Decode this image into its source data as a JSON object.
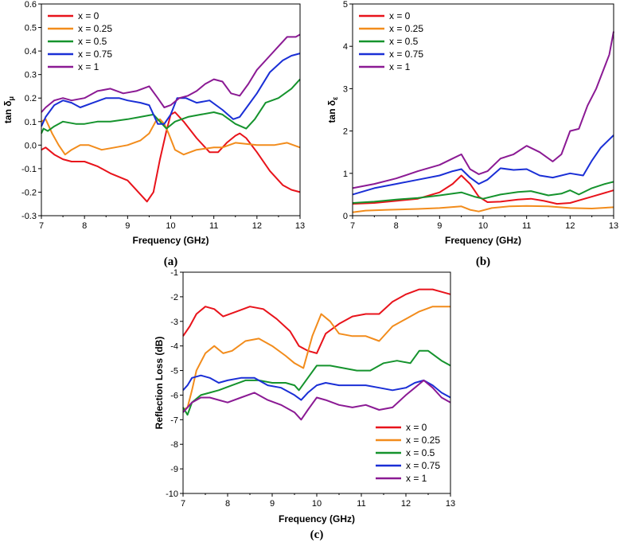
{
  "chart_data": [
    {
      "type": "line",
      "panel_label": "(a)",
      "xlabel": "Frequency (GHz)",
      "ylabel_main": "tan δ",
      "ylabel_sub": "μ",
      "xlim": [
        7,
        13
      ],
      "ylim": [
        -0.3,
        0.6
      ],
      "xticks": [
        7,
        8,
        9,
        10,
        11,
        12,
        13
      ],
      "yticks": [
        -0.3,
        -0.2,
        -0.1,
        0.0,
        0.1,
        0.2,
        0.3,
        0.4,
        0.5,
        0.6
      ],
      "ytick_labels": [
        "-0.3",
        "-0.2",
        "-0.1",
        "0.0",
        "0.1",
        "0.2",
        "0.3",
        "0.4",
        "0.5",
        "0.6"
      ],
      "series": [
        {
          "name": "x = 0",
          "color": "#e8131b",
          "x": [
            7.0,
            7.1,
            7.3,
            7.5,
            7.7,
            8.0,
            8.3,
            8.6,
            9.0,
            9.3,
            9.45,
            9.6,
            9.75,
            9.9,
            10.0,
            10.1,
            10.3,
            10.6,
            10.9,
            11.1,
            11.3,
            11.5,
            11.6,
            11.75,
            12.0,
            12.3,
            12.6,
            12.8,
            13.0
          ],
          "values": [
            -0.02,
            -0.01,
            -0.04,
            -0.06,
            -0.07,
            -0.07,
            -0.09,
            -0.12,
            -0.15,
            -0.21,
            -0.24,
            -0.2,
            -0.06,
            0.06,
            0.13,
            0.14,
            0.1,
            0.03,
            -0.03,
            -0.03,
            0.01,
            0.04,
            0.05,
            0.03,
            -0.03,
            -0.11,
            -0.17,
            -0.19,
            -0.2
          ]
        },
        {
          "name": "x = 0.25",
          "color": "#f28c1c",
          "x": [
            7.0,
            7.1,
            7.25,
            7.4,
            7.55,
            7.7,
            7.9,
            8.1,
            8.4,
            8.7,
            9.0,
            9.3,
            9.5,
            9.65,
            9.75,
            9.85,
            9.95,
            10.1,
            10.3,
            10.6,
            11.0,
            11.2,
            11.5,
            12.0,
            12.4,
            12.7,
            13.0
          ],
          "values": [
            0.1,
            0.11,
            0.05,
            0.0,
            -0.04,
            -0.02,
            0.0,
            0.0,
            -0.02,
            -0.01,
            0.0,
            0.02,
            0.05,
            0.1,
            0.11,
            0.09,
            0.05,
            -0.02,
            -0.04,
            -0.02,
            -0.01,
            -0.01,
            0.01,
            0.0,
            0.0,
            0.01,
            -0.01
          ]
        },
        {
          "name": "x = 0.5",
          "color": "#15932d",
          "x": [
            7.0,
            7.05,
            7.15,
            7.3,
            7.5,
            7.8,
            8.0,
            8.3,
            8.6,
            9.0,
            9.3,
            9.6,
            9.75,
            9.9,
            10.1,
            10.4,
            10.7,
            11.0,
            11.2,
            11.5,
            11.75,
            11.95,
            12.2,
            12.5,
            12.8,
            13.0
          ],
          "values": [
            0.05,
            0.07,
            0.06,
            0.08,
            0.1,
            0.09,
            0.09,
            0.1,
            0.1,
            0.11,
            0.12,
            0.13,
            0.1,
            0.07,
            0.1,
            0.12,
            0.13,
            0.14,
            0.13,
            0.09,
            0.07,
            0.11,
            0.18,
            0.2,
            0.24,
            0.28
          ]
        },
        {
          "name": "x = 0.75",
          "color": "#1a2fd6",
          "x": [
            7.0,
            7.1,
            7.3,
            7.5,
            7.7,
            7.9,
            8.2,
            8.5,
            8.8,
            9.0,
            9.3,
            9.5,
            9.7,
            9.85,
            10.0,
            10.15,
            10.35,
            10.6,
            10.9,
            11.2,
            11.45,
            11.6,
            11.8,
            12.0,
            12.3,
            12.6,
            12.8,
            13.0
          ],
          "values": [
            0.08,
            0.12,
            0.17,
            0.19,
            0.18,
            0.16,
            0.18,
            0.2,
            0.2,
            0.19,
            0.18,
            0.17,
            0.09,
            0.09,
            0.13,
            0.2,
            0.2,
            0.18,
            0.19,
            0.15,
            0.11,
            0.12,
            0.17,
            0.22,
            0.31,
            0.36,
            0.38,
            0.39
          ]
        },
        {
          "name": "x = 1",
          "color": "#8b1a94",
          "x": [
            7.0,
            7.1,
            7.3,
            7.5,
            7.7,
            8.0,
            8.3,
            8.6,
            8.9,
            9.2,
            9.5,
            9.7,
            9.85,
            10.0,
            10.2,
            10.4,
            10.6,
            10.8,
            11.0,
            11.2,
            11.4,
            11.6,
            11.8,
            12.0,
            12.3,
            12.5,
            12.7,
            12.9,
            13.0
          ],
          "values": [
            0.14,
            0.16,
            0.19,
            0.2,
            0.19,
            0.2,
            0.23,
            0.24,
            0.22,
            0.23,
            0.25,
            0.2,
            0.16,
            0.17,
            0.2,
            0.21,
            0.23,
            0.26,
            0.28,
            0.27,
            0.22,
            0.21,
            0.26,
            0.32,
            0.38,
            0.42,
            0.46,
            0.46,
            0.47
          ]
        }
      ]
    },
    {
      "type": "line",
      "panel_label": "(b)",
      "xlabel": "Frequency (GHz)",
      "ylabel_main": "tan δ",
      "ylabel_sub": "ε",
      "xlim": [
        7,
        13
      ],
      "ylim": [
        0,
        5
      ],
      "xticks": [
        7,
        8,
        9,
        10,
        11,
        12,
        13
      ],
      "yticks": [
        0,
        1,
        2,
        3,
        4,
        5
      ],
      "ytick_labels": [
        "0",
        "1",
        "2",
        "3",
        "4",
        "5"
      ],
      "series": [
        {
          "name": "x = 0",
          "color": "#e8131b",
          "x": [
            7.0,
            7.5,
            8.0,
            8.5,
            9.0,
            9.3,
            9.5,
            9.7,
            9.9,
            10.1,
            10.4,
            10.8,
            11.1,
            11.4,
            11.7,
            12.0,
            12.5,
            13.0
          ],
          "values": [
            0.28,
            0.3,
            0.35,
            0.4,
            0.55,
            0.75,
            0.95,
            0.75,
            0.45,
            0.32,
            0.33,
            0.38,
            0.4,
            0.35,
            0.28,
            0.3,
            0.45,
            0.6
          ]
        },
        {
          "name": "x = 0.25",
          "color": "#f28c1c",
          "x": [
            7.0,
            7.3,
            7.8,
            8.5,
            9.0,
            9.5,
            9.7,
            9.9,
            10.2,
            10.6,
            11.0,
            11.5,
            12.0,
            12.5,
            13.0
          ],
          "values": [
            0.08,
            0.12,
            0.14,
            0.16,
            0.18,
            0.22,
            0.14,
            0.1,
            0.18,
            0.22,
            0.23,
            0.22,
            0.18,
            0.17,
            0.2
          ]
        },
        {
          "name": "x = 0.5",
          "color": "#15932d",
          "x": [
            7.0,
            7.5,
            8.0,
            8.5,
            9.0,
            9.5,
            9.8,
            10.0,
            10.4,
            10.8,
            11.1,
            11.5,
            11.8,
            12.0,
            12.2,
            12.5,
            12.8,
            13.0
          ],
          "values": [
            0.3,
            0.33,
            0.38,
            0.42,
            0.48,
            0.55,
            0.45,
            0.4,
            0.5,
            0.56,
            0.58,
            0.48,
            0.52,
            0.6,
            0.5,
            0.65,
            0.75,
            0.8
          ]
        },
        {
          "name": "x = 0.75",
          "color": "#1a2fd6",
          "x": [
            7.0,
            7.5,
            8.0,
            8.5,
            9.0,
            9.3,
            9.5,
            9.7,
            9.9,
            10.1,
            10.4,
            10.7,
            11.0,
            11.3,
            11.6,
            12.0,
            12.3,
            12.5,
            12.7,
            12.9,
            13.0
          ],
          "values": [
            0.5,
            0.65,
            0.75,
            0.85,
            0.95,
            1.05,
            1.1,
            0.9,
            0.75,
            0.85,
            1.12,
            1.08,
            1.1,
            0.95,
            0.9,
            1.0,
            0.95,
            1.3,
            1.6,
            1.8,
            1.9
          ]
        },
        {
          "name": "x = 1",
          "color": "#8b1a94",
          "x": [
            7.0,
            7.5,
            8.0,
            8.5,
            9.0,
            9.3,
            9.5,
            9.7,
            9.9,
            10.1,
            10.4,
            10.7,
            11.0,
            11.3,
            11.6,
            11.8,
            12.0,
            12.2,
            12.4,
            12.6,
            12.75,
            12.9,
            13.0
          ],
          "values": [
            0.65,
            0.75,
            0.88,
            1.05,
            1.2,
            1.35,
            1.45,
            1.1,
            0.98,
            1.05,
            1.35,
            1.45,
            1.65,
            1.5,
            1.28,
            1.45,
            2.0,
            2.05,
            2.6,
            3.0,
            3.4,
            3.8,
            4.35
          ]
        }
      ]
    },
    {
      "type": "line",
      "panel_label": "(c)",
      "xlabel": "Frequency (GHz)",
      "ylabel": "Reflection Loss (dB)",
      "xlim": [
        7,
        13
      ],
      "ylim": [
        -10,
        -1
      ],
      "xticks": [
        7,
        8,
        9,
        10,
        11,
        12,
        13
      ],
      "yticks": [
        -10,
        -9,
        -8,
        -7,
        -6,
        -5,
        -4,
        -3,
        -2,
        -1
      ],
      "ytick_labels": [
        "-10",
        "-9",
        "-8",
        "-7",
        "-6",
        "-5",
        "-4",
        "-3",
        "-2",
        "-1"
      ],
      "series": [
        {
          "name": "x = 0",
          "color": "#e8131b",
          "x": [
            7.0,
            7.15,
            7.3,
            7.5,
            7.7,
            7.9,
            8.2,
            8.5,
            8.8,
            9.1,
            9.4,
            9.6,
            9.8,
            10.0,
            10.2,
            10.5,
            10.8,
            11.1,
            11.4,
            11.7,
            12.0,
            12.3,
            12.6,
            12.8,
            13.0
          ],
          "values": [
            -3.6,
            -3.2,
            -2.7,
            -2.4,
            -2.5,
            -2.8,
            -2.6,
            -2.4,
            -2.5,
            -2.9,
            -3.4,
            -4.0,
            -4.2,
            -4.3,
            -3.5,
            -3.1,
            -2.8,
            -2.7,
            -2.7,
            -2.2,
            -1.9,
            -1.7,
            -1.7,
            -1.8,
            -1.9
          ]
        },
        {
          "name": "x = 0.25",
          "color": "#f28c1c",
          "x": [
            7.0,
            7.1,
            7.2,
            7.3,
            7.5,
            7.7,
            7.9,
            8.1,
            8.4,
            8.7,
            9.0,
            9.3,
            9.5,
            9.7,
            9.9,
            10.1,
            10.3,
            10.5,
            10.8,
            11.1,
            11.4,
            11.7,
            12.0,
            12.3,
            12.6,
            12.8,
            13.0
          ],
          "values": [
            -6.6,
            -6.5,
            -5.8,
            -5.0,
            -4.3,
            -4.0,
            -4.3,
            -4.2,
            -3.8,
            -3.7,
            -4.0,
            -4.4,
            -4.7,
            -4.9,
            -3.6,
            -2.7,
            -3.0,
            -3.5,
            -3.6,
            -3.6,
            -3.8,
            -3.2,
            -2.9,
            -2.6,
            -2.4,
            -2.4,
            -2.4
          ]
        },
        {
          "name": "x = 0.5",
          "color": "#15932d",
          "x": [
            7.0,
            7.1,
            7.2,
            7.4,
            7.6,
            7.8,
            8.1,
            8.4,
            8.7,
            9.0,
            9.3,
            9.5,
            9.6,
            9.8,
            10.0,
            10.3,
            10.6,
            10.9,
            11.2,
            11.5,
            11.8,
            12.1,
            12.3,
            12.5,
            12.8,
            13.0
          ],
          "values": [
            -6.5,
            -6.8,
            -6.3,
            -6.0,
            -5.9,
            -5.8,
            -5.6,
            -5.4,
            -5.4,
            -5.5,
            -5.5,
            -5.6,
            -5.8,
            -5.3,
            -4.8,
            -4.8,
            -4.9,
            -5.0,
            -5.0,
            -4.7,
            -4.6,
            -4.7,
            -4.2,
            -4.2,
            -4.6,
            -4.8
          ]
        },
        {
          "name": "x = 0.75",
          "color": "#1a2fd6",
          "x": [
            7.0,
            7.1,
            7.2,
            7.4,
            7.6,
            7.8,
            8.0,
            8.3,
            8.6,
            8.9,
            9.2,
            9.5,
            9.65,
            9.8,
            10.0,
            10.2,
            10.5,
            10.8,
            11.1,
            11.4,
            11.7,
            12.0,
            12.2,
            12.4,
            12.6,
            12.8,
            13.0
          ],
          "values": [
            -5.8,
            -5.6,
            -5.3,
            -5.2,
            -5.3,
            -5.5,
            -5.4,
            -5.3,
            -5.3,
            -5.6,
            -5.7,
            -6.0,
            -6.2,
            -5.9,
            -5.6,
            -5.5,
            -5.6,
            -5.6,
            -5.6,
            -5.7,
            -5.8,
            -5.7,
            -5.5,
            -5.4,
            -5.6,
            -5.9,
            -6.1
          ]
        },
        {
          "name": "x = 1",
          "color": "#8b1a94",
          "x": [
            7.0,
            7.1,
            7.2,
            7.4,
            7.6,
            7.8,
            8.0,
            8.3,
            8.6,
            8.9,
            9.2,
            9.5,
            9.65,
            9.8,
            10.0,
            10.2,
            10.5,
            10.8,
            11.1,
            11.4,
            11.7,
            12.0,
            12.2,
            12.4,
            12.6,
            12.8,
            13.0
          ],
          "values": [
            -6.7,
            -6.5,
            -6.3,
            -6.1,
            -6.1,
            -6.2,
            -6.3,
            -6.1,
            -5.9,
            -6.2,
            -6.4,
            -6.7,
            -7.0,
            -6.6,
            -6.1,
            -6.2,
            -6.4,
            -6.5,
            -6.4,
            -6.6,
            -6.5,
            -6.0,
            -5.7,
            -5.4,
            -5.7,
            -6.1,
            -6.3
          ]
        }
      ]
    }
  ]
}
